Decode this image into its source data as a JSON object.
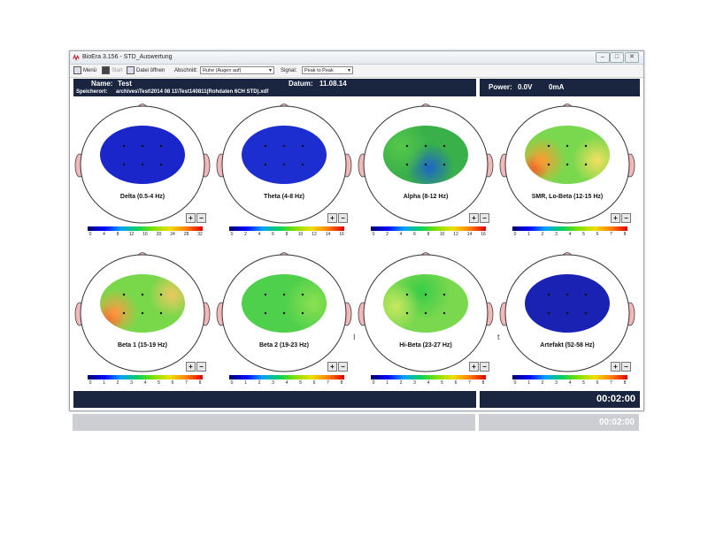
{
  "window": {
    "title": "BioEra 3.156 - STD_Auswertung",
    "buttons": {
      "minimize": "–",
      "maximize": "□",
      "close": "✕"
    }
  },
  "toolbar": {
    "menu_label": "Menü",
    "start_label": "Start",
    "open_file_label": "Datei öffnen",
    "section_label": "Abschnitt:",
    "section_value": "Ruhe (Augen auf)",
    "signal_label": "Signal:",
    "signal_value": "Peak to Peak"
  },
  "header": {
    "name_label": "Name:",
    "name_value": "Test",
    "date_label": "Datum:",
    "date_value": "11.08.14",
    "location_label": "Speicherort:",
    "location_value": "archives\\Test\\2014 08 11\\Test140811(Rohdaten 6CH STD).xdf",
    "power_label": "Power:",
    "power_voltage": "0.0V",
    "power_current": "0mA"
  },
  "footer": {
    "timer": "00:02:00"
  },
  "stray_marks": [
    "I",
    "t"
  ],
  "plus_label": "+",
  "minus_label": "−",
  "colors": {
    "panel": "#1a2540",
    "head": "#ffffff",
    "ear_nose": "#f0b8b8",
    "scale": [
      "#000070",
      "#0000ff",
      "#00a0ff",
      "#00d060",
      "#80e000",
      "#f0e000",
      "#ff8000",
      "#e00000"
    ]
  },
  "maps": [
    {
      "label": "Delta (0.5-4 Hz)",
      "ticks": [
        "0",
        "4",
        "8",
        "12",
        "16",
        "20",
        "24",
        "28",
        "32"
      ],
      "base": "#1a26c9",
      "blobs": []
    },
    {
      "label": "Theta (4-8 Hz)",
      "ticks": [
        "0",
        "2",
        "4",
        "6",
        "8",
        "10",
        "12",
        "14",
        "16"
      ],
      "base": "#1c2ed0",
      "blobs": []
    },
    {
      "label": "Alpha (8-12 Hz)",
      "ticks": [
        "0",
        "2",
        "4",
        "6",
        "8",
        "10",
        "12",
        "14",
        "16"
      ],
      "base": "#39b04a",
      "blobs": [
        [
          "#1e64c8",
          0.55,
          0.72,
          0.25
        ],
        [
          "#55c84a",
          0.2,
          0.35,
          0.3
        ]
      ]
    },
    {
      "label": "SMR, Lo-Beta (12-15 Hz)",
      "ticks": [
        "0",
        "1",
        "2",
        "3",
        "4",
        "5",
        "6",
        "7",
        "8"
      ],
      "base": "#7ad84e",
      "blobs": [
        [
          "#e02020",
          0.12,
          0.72,
          0.14
        ],
        [
          "#ff9a30",
          0.2,
          0.6,
          0.25
        ],
        [
          "#f4e060",
          0.85,
          0.6,
          0.25
        ]
      ]
    },
    {
      "label": "Beta 1 (15-19 Hz)",
      "ticks": [
        "0",
        "1",
        "2",
        "3",
        "4",
        "5",
        "6",
        "7",
        "8"
      ],
      "base": "#78d84a",
      "blobs": [
        [
          "#e03020",
          0.12,
          0.75,
          0.14
        ],
        [
          "#ff9a40",
          0.18,
          0.65,
          0.24
        ],
        [
          "#f0c860",
          0.85,
          0.35,
          0.24
        ]
      ]
    },
    {
      "label": "Beta 2 (19-23 Hz)",
      "ticks": [
        "0",
        "1",
        "2",
        "3",
        "4",
        "5",
        "6",
        "7",
        "8"
      ],
      "base": "#4fd04c",
      "blobs": [
        [
          "#8ce050",
          0.85,
          0.5,
          0.3
        ]
      ]
    },
    {
      "label": "Hi-Beta (23-27 Hz)",
      "ticks": [
        "0",
        "1",
        "2",
        "3",
        "4",
        "5",
        "6",
        "7",
        "8"
      ],
      "base": "#7ad84e",
      "blobs": [
        [
          "#38cc48",
          0.45,
          0.3,
          0.3
        ],
        [
          "#c8e860",
          0.15,
          0.55,
          0.25
        ]
      ]
    },
    {
      "label": "Artefakt (52-58 Hz)",
      "ticks": [
        "0",
        "1",
        "2",
        "3",
        "4",
        "5",
        "6",
        "7",
        "8"
      ],
      "base": "#1a22b4",
      "blobs": []
    }
  ]
}
